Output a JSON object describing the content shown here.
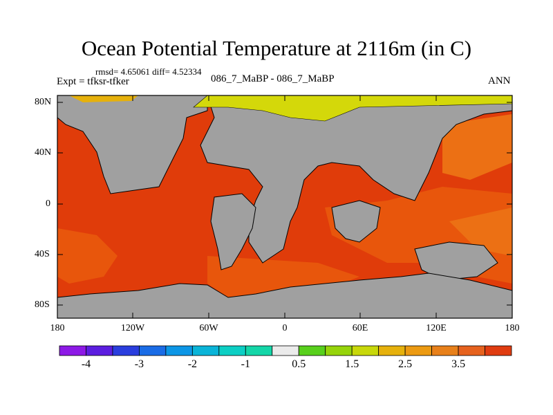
{
  "header": {
    "title": "Ocean Potential Temperature at 2116m (in C)",
    "stats": "rmsd= 4.65061 diff= 4.52334",
    "expt": "Expt = tfksr-tfker",
    "cases": "086_7_MaBP - 086_7_MaBP",
    "season": "ANN"
  },
  "map": {
    "lat_ticks": [
      "80N",
      "40N",
      "0",
      "40S",
      "80S"
    ],
    "lon_ticks": [
      "180",
      "120W",
      "60W",
      "0",
      "60E",
      "120E",
      "180"
    ],
    "colors": {
      "land": "#a0a0a0",
      "ocean_warm": "#e03c0a",
      "ocean_mid": "#e8560c",
      "ocean_cool": "#ec7014",
      "arctic": "#d4d80a",
      "coast": "#000000"
    }
  },
  "colorbar": {
    "labels": [
      "-4",
      "-3",
      "-2",
      "-1",
      "0.5",
      "1.5",
      "2.5",
      "3.5"
    ],
    "colors": [
      "#8d19e6",
      "#5c1ee0",
      "#2a3ede",
      "#1a6ce6",
      "#0c96e6",
      "#0ab4d8",
      "#0ccfc4",
      "#14d6a8",
      "#ebebeb",
      "#58d01c",
      "#96d40a",
      "#c8d80a",
      "#e6b10c",
      "#ec9a12",
      "#e8801a",
      "#e6621e",
      "#e03c10"
    ]
  }
}
